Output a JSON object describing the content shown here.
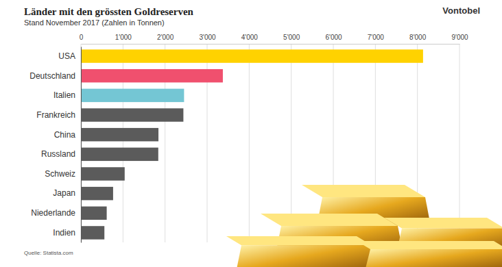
{
  "chart_data": {
    "type": "bar",
    "orientation": "horizontal",
    "title": "Länder mit den grössten Goldreserven",
    "subtitle": "Stand November 2017 (Zahlen in Tonnen)",
    "brand": "Vontobel",
    "source": "Quelle: Statista.com",
    "categories": [
      "USA",
      "Deutschland",
      "Italien",
      "Frankreich",
      "China",
      "Russland",
      "Schweiz",
      "Japan",
      "Niederlande",
      "Indien"
    ],
    "values": [
      8134,
      3374,
      2452,
      2436,
      1843,
      1839,
      1040,
      765,
      613,
      558
    ],
    "colors": [
      "#ffd200",
      "#f0506e",
      "#74c6d4",
      "#5b5b5b",
      "#5b5b5b",
      "#5b5b5b",
      "#5b5b5b",
      "#5b5b5b",
      "#5b5b5b",
      "#5b5b5b"
    ],
    "xlim": [
      0,
      9000
    ],
    "xticks": [
      0,
      {
        "value": 1000,
        "label": "1'000"
      },
      {
        "value": 2000,
        "label": "2'000"
      },
      {
        "value": 3000,
        "label": "3'000"
      },
      {
        "value": 4000,
        "label": "4'000"
      },
      {
        "value": 5000,
        "label": "5'000"
      },
      {
        "value": 6000,
        "label": "6'000"
      },
      {
        "value": 7000,
        "label": "7'000"
      },
      {
        "value": 8000,
        "label": "8'000"
      },
      {
        "value": 9000,
        "label": "9'000"
      }
    ],
    "grid": true
  }
}
